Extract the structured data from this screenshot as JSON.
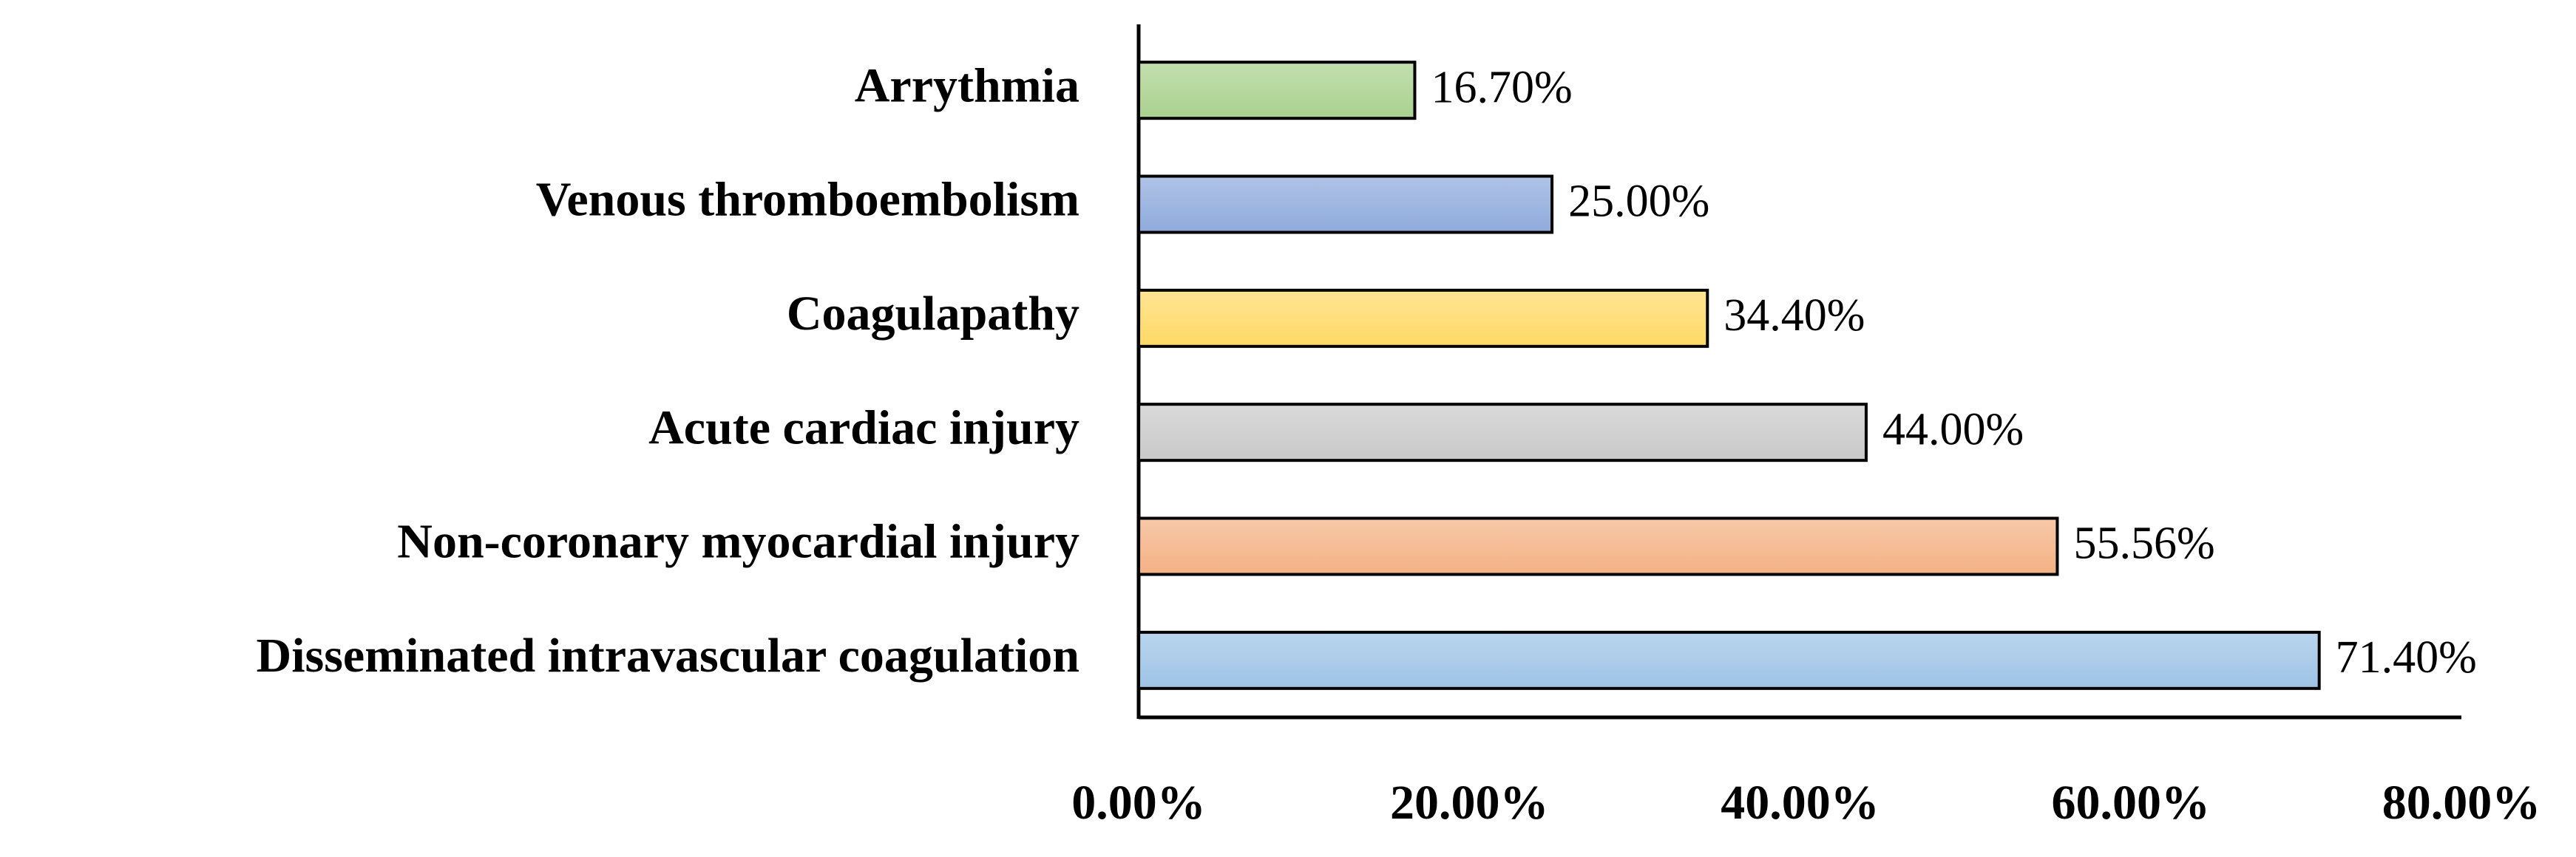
{
  "chart_data": {
    "type": "barh",
    "categories": [
      "Arrythmia",
      "Venous thromboembolism",
      "Coagulapathy",
      "Acute cardiac injury",
      "Non-coronary myocardial injury",
      "Disseminated intravascular coagulation"
    ],
    "values": [
      16.7,
      25.0,
      34.4,
      44.0,
      55.56,
      71.4
    ],
    "value_labels": [
      "16.70%",
      "25.00%",
      "34.40%",
      "44.00%",
      "55.56%",
      "71.40%"
    ],
    "colors": [
      "#a9d18e",
      "#8faadc",
      "#ffd966",
      "#c9c9c9",
      "#f4b183",
      "#9dc3e6"
    ],
    "xlim": [
      0,
      80
    ],
    "xticks": [
      {
        "value": 0,
        "label": "0.00%"
      },
      {
        "value": 20,
        "label": "20.00%"
      },
      {
        "value": 40,
        "label": "40.00%"
      },
      {
        "value": 60,
        "label": "60.00%"
      },
      {
        "value": 80,
        "label": "80.00%"
      }
    ],
    "grid": false
  }
}
